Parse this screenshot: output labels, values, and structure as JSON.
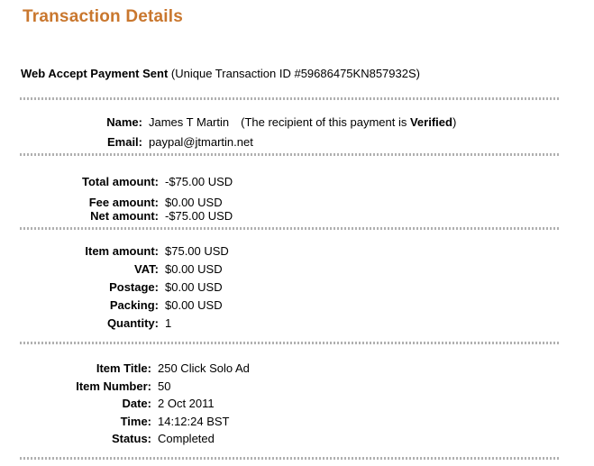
{
  "page_title": "Transaction Details",
  "header": {
    "payment_type": "Web Accept Payment Sent",
    "transaction_id_note": "(Unique Transaction ID #59686475KN857932S)"
  },
  "recipient": {
    "name_label": "Name:",
    "name": "James T Martin",
    "verified_note_prefix": "(The recipient of this payment is ",
    "verified_word": "Verified",
    "verified_note_suffix": ")",
    "email_label": "Email:",
    "email": "paypal@jtmartin.net"
  },
  "amounts": {
    "total_label": "Total amount:",
    "total": "-$75.00 USD",
    "fee_label": "Fee amount:",
    "fee": "$0.00 USD",
    "net_label": "Net amount:",
    "net": "-$75.00 USD"
  },
  "item_costs": {
    "item_amount_label": "Item amount:",
    "item_amount": "$75.00 USD",
    "vat_label": "VAT:",
    "vat": "$0.00 USD",
    "postage_label": "Postage:",
    "postage": "$0.00 USD",
    "packing_label": "Packing:",
    "packing": "$0.00 USD",
    "quantity_label": "Quantity:",
    "quantity": "1"
  },
  "item_details": {
    "item_title_label": "Item Title:",
    "item_title": "250 Click Solo Ad",
    "item_number_label": "Item Number:",
    "item_number": "50",
    "date_label": "Date:",
    "date": "2 Oct 2011",
    "time_label": "Time:",
    "time": "14:12:24 BST",
    "status_label": "Status:",
    "status": "Completed"
  },
  "colors": {
    "accent": "#C9772E",
    "divider": "#B0B0B0"
  }
}
